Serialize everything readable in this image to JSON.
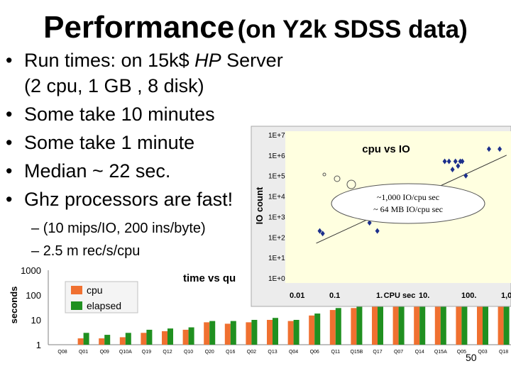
{
  "slide": {
    "title_main": "Performance",
    "title_sub": "(on Y2k SDSS data)",
    "bullets": [
      {
        "prefix": "Run times: on 15k$ ",
        "italic": "HP",
        "suffix": " Server"
      },
      {
        "text": "Some take 10 minutes"
      },
      {
        "text": "Some take 1 minute"
      },
      {
        "text": "Median ~ 22 sec."
      },
      {
        "text": "Ghz processors are fast!"
      }
    ],
    "bullet_continuation": "(2 cpu, 1 GB , 8 disk)",
    "sub_bullets": [
      "(10 mips/IO, 200 ins/byte)",
      "2.5 m rec/s/cpu"
    ],
    "bullet_char": "•",
    "dash_char": "–",
    "page_number": "50"
  },
  "chart_data": [
    {
      "type": "bar",
      "title": "time vs qu",
      "ylabel": "seconds",
      "yscale": "log",
      "ylim": [
        1,
        1000
      ],
      "yticks": [
        "1000",
        "100",
        "10",
        "1"
      ],
      "categories": [
        "Q08",
        "Q01",
        "Q09",
        "Q10A",
        "Q19",
        "Q12",
        "Q10",
        "Q20",
        "Q16",
        "Q02",
        "Q13",
        "Q04",
        "Q06",
        "Q11",
        "Q15B",
        "Q17",
        "Q07",
        "Q14",
        "Q15A",
        "Q05",
        "Q03",
        "Q18"
      ],
      "series": [
        {
          "name": "cpu",
          "color": "#f07030",
          "values": [
            1,
            1.8,
            1.8,
            2,
            3,
            3.5,
            4,
            8,
            7,
            8,
            10,
            9,
            15,
            25,
            30,
            40,
            60,
            80,
            100,
            150,
            250,
            450
          ]
        },
        {
          "name": "elapsed",
          "color": "#209020",
          "values": [
            1,
            3,
            2.5,
            3,
            4,
            4.5,
            5,
            9,
            9,
            10,
            12,
            10,
            18,
            30,
            35,
            45,
            70,
            90,
            120,
            180,
            300,
            600
          ]
        }
      ],
      "legend": "top-left"
    },
    {
      "type": "scatter",
      "title": "cpu vs IO",
      "xlabel": "CPU sec",
      "ylabel": "IO count",
      "xscale": "log",
      "yscale": "log",
      "xticks": [
        "0.01",
        "0.1",
        "1.",
        "10.",
        "100.",
        "1,0"
      ],
      "yticks": [
        "1E+0",
        "1E+1",
        "1E+2",
        "1E+3",
        "1E+4",
        "1E+5",
        "1E+6",
        "1E+7"
      ],
      "points": [
        {
          "x": 0.06,
          "y": 200
        },
        {
          "x": 0.07,
          "y": 150
        },
        {
          "x": 0.8,
          "y": 500
        },
        {
          "x": 1.2,
          "y": 200
        },
        {
          "x": 3,
          "y": 6000
        },
        {
          "x": 4,
          "y": 9000
        },
        {
          "x": 7,
          "y": 7000
        },
        {
          "x": 15,
          "y": 9000
        },
        {
          "x": 30,
          "y": 20000
        },
        {
          "x": 40,
          "y": 500000
        },
        {
          "x": 50,
          "y": 500000
        },
        {
          "x": 60,
          "y": 200000
        },
        {
          "x": 70,
          "y": 500000
        },
        {
          "x": 80,
          "y": 300000
        },
        {
          "x": 90,
          "y": 500000
        },
        {
          "x": 100,
          "y": 500000
        },
        {
          "x": 120,
          "y": 100000
        },
        {
          "x": 400,
          "y": 2000000
        },
        {
          "x": 700,
          "y": 2000000
        }
      ],
      "trend": [
        {
          "x": 0.05,
          "y": 50
        },
        {
          "x": 1000,
          "y": 1000000
        }
      ],
      "callout": [
        "~1,000 IO/cpu sec",
        "~ 64 MB IO/cpu sec"
      ],
      "grid": false
    }
  ]
}
